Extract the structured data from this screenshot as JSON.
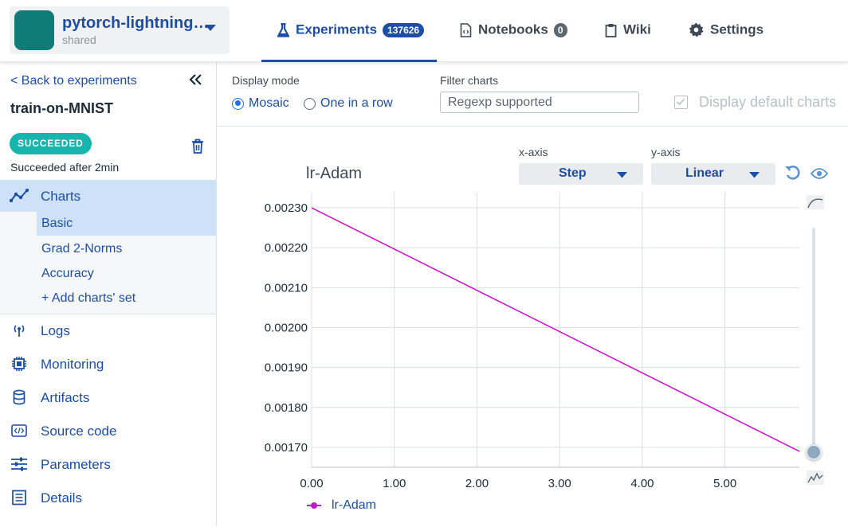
{
  "project": {
    "name": "pytorch-lightning…",
    "scope": "shared"
  },
  "tabs": [
    {
      "label": "Experiments",
      "count": "137626"
    },
    {
      "label": "Notebooks",
      "count": "0"
    },
    {
      "label": "Wiki"
    },
    {
      "label": "Settings"
    }
  ],
  "sidebar": {
    "back_label": "< Back to experiments",
    "run_name": "train-on-MNIST",
    "status_badge": "SUCCEEDED",
    "status_text": "Succeeded after 2min",
    "charts_label": "Charts",
    "chart_sets": [
      "Basic",
      "Grad 2-Norms",
      "Accuracy",
      "+ Add charts' set"
    ],
    "items": [
      "Logs",
      "Monitoring",
      "Artifacts",
      "Source code",
      "Parameters",
      "Details"
    ]
  },
  "controls": {
    "display_mode_label": "Display mode",
    "mode_options": [
      "Mosaic",
      "One in a row"
    ],
    "selected_mode": "Mosaic",
    "filter_label": "Filter charts",
    "filter_placeholder": "Regexp supported",
    "default_charts_label": "Display default charts"
  },
  "chart_panel": {
    "xaxis_caption": "x-axis",
    "xaxis_value": "Step",
    "yaxis_caption": "y-axis",
    "yaxis_value": "Linear"
  },
  "colors": {
    "accent": "#1d4ea3",
    "series": "#c816c8",
    "succeeded": "#17b5ad"
  },
  "chart_data": {
    "type": "line",
    "title": "lr-Adam",
    "xlim": [
      0,
      5.9
    ],
    "ylim": [
      0.00165,
      0.00234
    ],
    "x_ticks": [
      "0.00",
      "1.00",
      "2.00",
      "3.00",
      "4.00",
      "5.00"
    ],
    "y_ticks": [
      "0.00230",
      "0.00220",
      "0.00210",
      "0.00200",
      "0.00190",
      "0.00180",
      "0.00170"
    ],
    "series": [
      {
        "name": "lr-Adam",
        "x": [
          0,
          5.9
        ],
        "y": [
          0.0023,
          0.00169
        ]
      }
    ]
  }
}
